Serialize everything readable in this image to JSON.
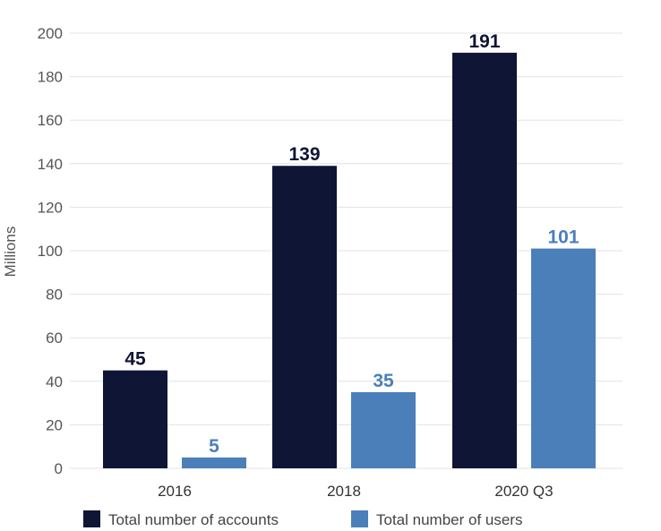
{
  "chart_data": {
    "type": "bar",
    "categories": [
      "2016",
      "2018",
      "2020 Q3"
    ],
    "series": [
      {
        "name": "Total number of accounts",
        "values": [
          45,
          139,
          191
        ],
        "color": "#0f1535",
        "label_color": "#0f1535"
      },
      {
        "name": "Total number of users",
        "values": [
          5,
          35,
          101
        ],
        "color": "#4b7fb9",
        "label_color": "#4b7fb9"
      }
    ],
    "ylabel": "Millions",
    "ylim": [
      0,
      200
    ],
    "yticks": [
      0,
      20,
      40,
      60,
      80,
      100,
      120,
      140,
      160,
      180,
      200
    ],
    "grid": true,
    "legend_position": "bottom"
  }
}
